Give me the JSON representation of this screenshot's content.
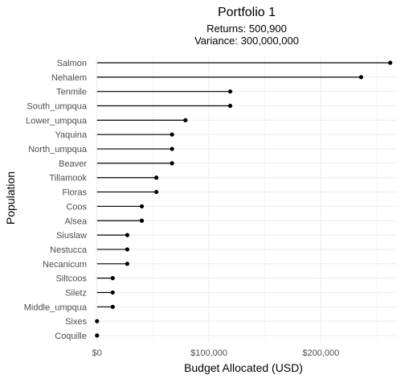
{
  "chart_data": {
    "type": "lollipop",
    "title": "Portfolio 1",
    "subtitle_lines": [
      "Returns: 500,900",
      "Variance: 300,000,000"
    ],
    "xlabel": "Budget Allocated (USD)",
    "ylabel": "Population",
    "xlim": [
      -2000,
      268000
    ],
    "x_ticks": [
      0,
      100000,
      200000
    ],
    "x_tick_labels": [
      "$0",
      "$100,000",
      "$200,000"
    ],
    "grid": true,
    "categories": [
      "Salmon",
      "Nehalem",
      "Tenmile",
      "South_umpqua",
      "Lower_umpqua",
      "Yaquina",
      "North_umpqua",
      "Beaver",
      "Tillamook",
      "Floras",
      "Coos",
      "Alsea",
      "Siuslaw",
      "Nestucca",
      "Necanicum",
      "Siltcoos",
      "Siletz",
      "Middle_umpqua",
      "Sixes",
      "Coquille"
    ],
    "values": [
      262000,
      236000,
      119000,
      119000,
      79000,
      67000,
      67000,
      67000,
      53000,
      53000,
      40000,
      40000,
      27000,
      27000,
      27000,
      14000,
      14000,
      14000,
      0,
      0
    ]
  }
}
